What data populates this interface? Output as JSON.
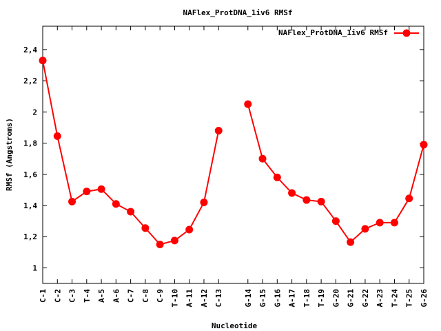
{
  "chart_data": {
    "type": "line",
    "title": "NAFlex_ProtDNA_1iv6 RMSf",
    "xlabel": "Nucleotide",
    "ylabel": "RMSf (Angstroms)",
    "ylim": [
      0.9,
      2.55
    ],
    "yticks": [
      "1",
      "1,2",
      "1,4",
      "1,6",
      "1,8",
      "2",
      "2,2",
      "2,4"
    ],
    "ytick_values": [
      1.0,
      1.2,
      1.4,
      1.6,
      1.8,
      2.0,
      2.2,
      2.4
    ],
    "categories": [
      "C-1",
      "C-2",
      "C-3",
      "T-4",
      "A-5",
      "A-6",
      "C-7",
      "C-8",
      "C-9",
      "T-10",
      "A-11",
      "A-12",
      "C-13",
      "G-14",
      "G-15",
      "G-16",
      "A-17",
      "T-18",
      "T-19",
      "G-20",
      "G-21",
      "G-22",
      "A-23",
      "T-24",
      "T-25",
      "G-26"
    ],
    "x_positions": [
      1,
      2,
      3,
      4,
      5,
      6,
      7,
      8,
      9,
      10,
      11,
      12,
      13,
      15,
      16,
      17,
      18,
      19,
      20,
      21,
      22,
      23,
      24,
      25,
      26,
      27
    ],
    "xlim": [
      1,
      27
    ],
    "segments": [
      [
        0,
        12
      ],
      [
        13,
        25
      ]
    ],
    "series": [
      {
        "name": "NAFlex_ProtDNA_1iv6 RMSf",
        "color": "#ff0000",
        "values": [
          2.33,
          1.845,
          1.425,
          1.49,
          1.505,
          1.41,
          1.36,
          1.255,
          1.15,
          1.175,
          1.245,
          1.42,
          1.88,
          2.05,
          1.7,
          1.58,
          1.48,
          1.435,
          1.425,
          1.3,
          1.165,
          1.25,
          1.29,
          1.29,
          1.445,
          1.79
        ]
      }
    ],
    "legend": "top-right",
    "grid": false
  }
}
